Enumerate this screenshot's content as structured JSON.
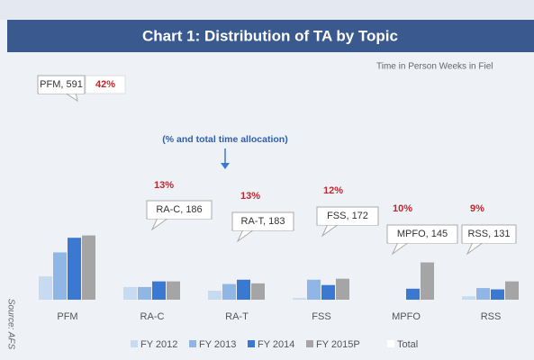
{
  "chart_data": {
    "type": "bar",
    "title": "Chart 1: Distribution of TA by Topic",
    "subtitle": "Time in Person Weeks in Fiel",
    "annotation": "(% and total time allocation)",
    "source": "Source: AFS",
    "categories": [
      "PFM",
      "RA-C",
      "RA-T",
      "FSS",
      "MPFO",
      "RSS"
    ],
    "series": [
      {
        "name": "FY 2012",
        "color": "#c6daf2",
        "values": [
          70,
          38,
          27,
          5,
          0,
          10
        ]
      },
      {
        "name": "FY 2013",
        "color": "#8fb6e4",
        "values": [
          142,
          38,
          47,
          60,
          0,
          35
        ]
      },
      {
        "name": "FY 2014",
        "color": "#3b78d2",
        "values": [
          186,
          55,
          60,
          44,
          33,
          31
        ]
      },
      {
        "name": "FY 2015P",
        "color": "#a5a5a5",
        "values": [
          193,
          55,
          49,
          63,
          112,
          55
        ]
      }
    ],
    "totals": {
      "name": "Total",
      "color": "#ffffff",
      "values": [
        591,
        186,
        183,
        172,
        145,
        131
      ],
      "value_labels": [
        "PFM, 591",
        "RA-C, 186",
        "RA-T, 183",
        "FSS, 172",
        "MPFO, 145",
        "RSS, 131"
      ]
    },
    "shares": {
      "values": [
        42,
        13,
        13,
        12,
        10,
        9
      ],
      "value_labels": [
        "42%",
        "13%",
        "13%",
        "12%",
        "10%",
        "9%"
      ]
    }
  }
}
